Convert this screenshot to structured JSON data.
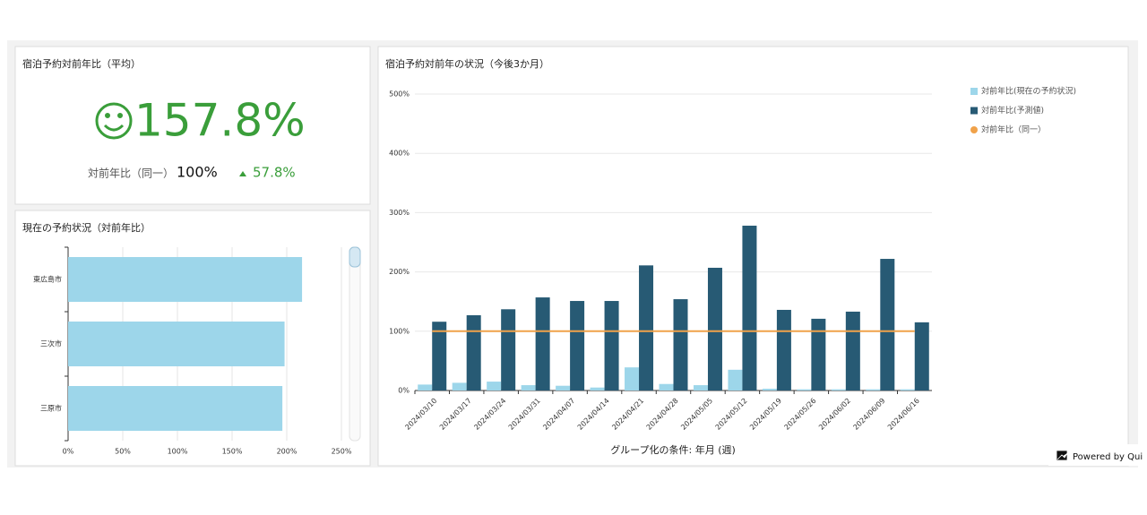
{
  "kpi": {
    "title": "宿泊予約対前年比（平均）",
    "value": "157.8%",
    "compare_label": "対前年比（同一）",
    "compare_value": "100%",
    "delta": "57.8%"
  },
  "chart_data": [
    {
      "type": "bar",
      "orientation": "horizontal",
      "title": "現在の予約状況（対前年比）",
      "categories": [
        "東広島市",
        "三次市",
        "三原市"
      ],
      "values": [
        214,
        198,
        196
      ],
      "color": "#9dd6ea",
      "xlim": [
        0,
        250
      ],
      "xticks": [
        {
          "value": 0,
          "label": "0%"
        },
        {
          "value": 50,
          "label": "50%"
        },
        {
          "value": 100,
          "label": "100%"
        },
        {
          "value": 150,
          "label": "150%"
        },
        {
          "value": 200,
          "label": "200%"
        },
        {
          "value": 250,
          "label": "250%"
        }
      ],
      "grid": true
    },
    {
      "type": "combo",
      "title": "宿泊予約対前年の状況（今後3か月）",
      "x_label": "グループ化の条件: 年月 (週)",
      "categories": [
        "2024/03/10",
        "2024/03/17",
        "2024/03/24",
        "2024/03/31",
        "2024/04/07",
        "2024/04/14",
        "2024/04/21",
        "2024/04/28",
        "2024/05/05",
        "2024/05/12",
        "2024/05/19",
        "2024/05/26",
        "2024/06/02",
        "2024/06/09",
        "2024/06/16"
      ],
      "series": [
        {
          "name": "対前年比(現在の予約状況)",
          "type": "bar",
          "color": "#9dd6ea",
          "values": [
            10,
            13,
            15,
            9,
            8,
            5,
            39,
            11,
            9,
            35,
            3,
            2,
            2,
            2,
            2
          ]
        },
        {
          "name": "対前年比(予測値)",
          "type": "bar",
          "color": "#275a74",
          "values": [
            116,
            127,
            137,
            157,
            151,
            151,
            211,
            154,
            207,
            278,
            136,
            121,
            133,
            222,
            115
          ]
        },
        {
          "name": "対前年比（同一）",
          "type": "line",
          "color": "#f0a24a",
          "values": [
            100,
            100,
            100,
            100,
            100,
            100,
            100,
            100,
            100,
            100,
            100,
            100,
            100,
            100,
            100
          ]
        }
      ],
      "ylim": [
        0,
        500
      ],
      "yticks": [
        {
          "value": 0,
          "label": "0%"
        },
        {
          "value": 100,
          "label": "100%"
        },
        {
          "value": 200,
          "label": "200%"
        },
        {
          "value": 300,
          "label": "300%"
        },
        {
          "value": 400,
          "label": "400%"
        },
        {
          "value": 500,
          "label": "500%"
        }
      ],
      "grid": true,
      "legend": "right"
    }
  ],
  "footer": "Powered by Qui"
}
